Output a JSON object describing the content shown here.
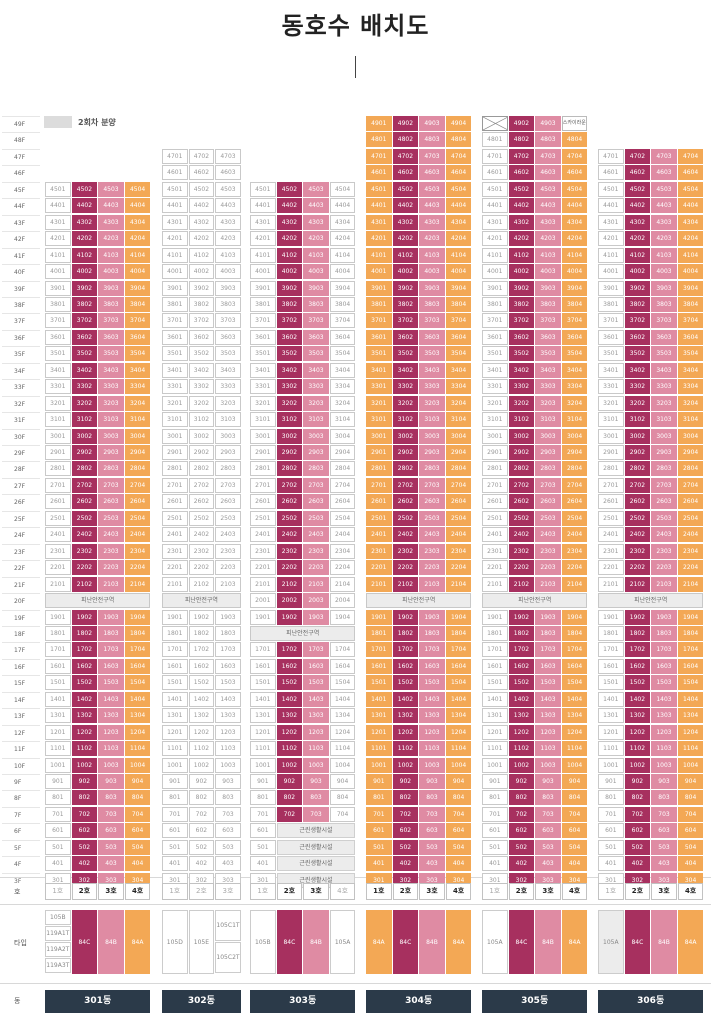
{
  "page": {
    "title": "동호수 배치도",
    "legend_label": "2회차 분양"
  },
  "colors": {
    "magenta": "#a7305f",
    "pink": "#df8ba3",
    "orange": "#f3a855",
    "gray": "#e3e3e3",
    "navy": "#2b3a49"
  },
  "floors": [
    "49F",
    "48F",
    "47F",
    "46F",
    "45F",
    "44F",
    "43F",
    "42F",
    "41F",
    "40F",
    "39F",
    "38F",
    "37F",
    "36F",
    "35F",
    "34F",
    "33F",
    "32F",
    "31F",
    "30F",
    "29F",
    "28F",
    "27F",
    "26F",
    "25F",
    "24F",
    "23F",
    "22F",
    "21F",
    "20F",
    "19F",
    "18F",
    "17F",
    "16F",
    "15F",
    "14F",
    "13F",
    "12F",
    "11F",
    "10F",
    "9F",
    "8F",
    "7F",
    "6F",
    "5F",
    "4F",
    "3F"
  ],
  "row_labels": {
    "ho": "호",
    "type": "타입",
    "dong": "동"
  },
  "buildings": [
    {
      "name": "301동",
      "hos": [
        "1호",
        "2호",
        "3호",
        "4호"
      ],
      "ho_selected": [
        false,
        true,
        true,
        true
      ],
      "top": 45,
      "col_colors": [
        "w",
        "m",
        "p",
        "o"
      ],
      "refuge_floor": 20,
      "refuge_label": "피난안전구역",
      "low_top": 5,
      "types": [
        {
          "kind": "stack",
          "items": [
            "105B",
            "119A1T",
            "119A2T",
            "119A3T"
          ]
        },
        {
          "kind": "block",
          "label": "84C",
          "color": "m"
        },
        {
          "kind": "block",
          "label": "84B",
          "color": "p"
        },
        {
          "kind": "block",
          "label": "84A",
          "color": "o"
        }
      ]
    },
    {
      "name": "302동",
      "hos": [
        "1호",
        "2호",
        "3호"
      ],
      "ho_selected": [
        false,
        false,
        false
      ],
      "top": 47,
      "col_colors": [
        "w",
        "w",
        "w"
      ],
      "refuge_floor": 20,
      "refuge_label": "피난안전구역",
      "low_top": 5,
      "types": [
        {
          "kind": "single",
          "label": "105D"
        },
        {
          "kind": "single",
          "label": "105E"
        },
        {
          "kind": "split",
          "items": [
            "105C1T",
            "105C2T"
          ]
        }
      ]
    },
    {
      "name": "303동",
      "hos": [
        "1호",
        "2호",
        "3호",
        "4호"
      ],
      "ho_selected": [
        false,
        true,
        true,
        false
      ],
      "top": 45,
      "col_colors": [
        "w",
        "m",
        "p",
        "w"
      ],
      "refuge_floor": 18,
      "refuge_label": "피난안전구역",
      "low_top": 6,
      "facility_label": "근린생활시설",
      "types": [
        {
          "kind": "single",
          "label": "105B"
        },
        {
          "kind": "block",
          "label": "84C",
          "color": "m"
        },
        {
          "kind": "block",
          "label": "84B",
          "color": "p"
        },
        {
          "kind": "single",
          "label": "105A"
        }
      ]
    },
    {
      "name": "304동",
      "hos": [
        "1호",
        "2호",
        "3호",
        "4호"
      ],
      "ho_selected": [
        true,
        true,
        true,
        true
      ],
      "top": 49,
      "col_colors": [
        "o",
        "m",
        "p",
        "o"
      ],
      "refuge_floor": 20,
      "refuge_label": "피난안전구역",
      "low_top": 5,
      "types": [
        {
          "kind": "block",
          "label": "84A",
          "color": "o"
        },
        {
          "kind": "block",
          "label": "84C",
          "color": "m"
        },
        {
          "kind": "block",
          "label": "84B",
          "color": "p"
        },
        {
          "kind": "block",
          "label": "84A",
          "color": "o"
        }
      ]
    },
    {
      "name": "305동",
      "hos": [
        "1호",
        "2호",
        "3호",
        "4호"
      ],
      "ho_selected": [
        false,
        true,
        true,
        true
      ],
      "top": 49,
      "col_colors": [
        "w",
        "m",
        "p",
        "o"
      ],
      "refuge_floor": 20,
      "refuge_label": "피난안전구역",
      "low_top": 5,
      "sky_label": "스카이라운지",
      "types": [
        {
          "kind": "single",
          "label": "105A"
        },
        {
          "kind": "block",
          "label": "84C",
          "color": "m"
        },
        {
          "kind": "block",
          "label": "84B",
          "color": "p"
        },
        {
          "kind": "block",
          "label": "84A",
          "color": "o"
        }
      ]
    },
    {
      "name": "306동",
      "hos": [
        "1호",
        "2호",
        "3호",
        "4호"
      ],
      "ho_selected": [
        false,
        true,
        true,
        true
      ],
      "top": 47,
      "col_colors": [
        "w",
        "m",
        "p",
        "o"
      ],
      "refuge_floor": 20,
      "refuge_label": "피난안전구역",
      "low_top": 5,
      "types": [
        {
          "kind": "gray",
          "label": "105A"
        },
        {
          "kind": "block",
          "label": "84C",
          "color": "m"
        },
        {
          "kind": "block",
          "label": "84B",
          "color": "p"
        },
        {
          "kind": "block",
          "label": "84A",
          "color": "o"
        }
      ]
    }
  ]
}
